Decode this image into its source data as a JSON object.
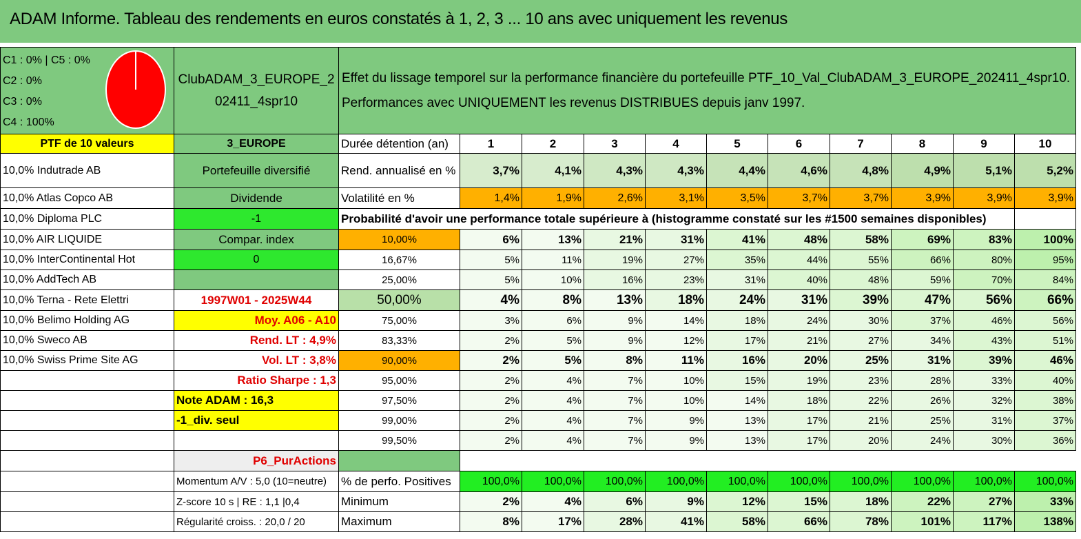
{
  "title": "ADAM Informe. Tableau des rendements en euros constatés à 1, 2, 3 ... 10 ans avec uniquement les revenus",
  "colors": {
    "title_bg": "#7fc97f",
    "yellow": "#ffff00",
    "orange": "#ffb000",
    "bright_green": "#2ee82e",
    "red_text": "#e00000",
    "pie": "#ff0000"
  },
  "pie_panel": {
    "lines": [
      "C1 : 0% | C5 : 0%",
      "C2 : 0%",
      "C3 : 0%",
      "C4 : 100%"
    ],
    "pie_share_C4": 100
  },
  "portfolio_name": "ClubADAM_3_EUROPE_202411_4spr10",
  "effect_text": {
    "line1": "Effet du lissage temporel sur la performance financière du portefeuille PTF_10_Val_ClubADAM_3_EUROPE_202411_4spr10.",
    "line2": "Performances avec UNIQUEMENT les revenus DISTRIBUES depuis janv 1997."
  },
  "header": {
    "ptf_label": "PTF de 10 valeurs",
    "zone": "3_EUROPE",
    "duration_label": "Durée détention (an)",
    "years": [
      "1",
      "2",
      "3",
      "4",
      "5",
      "6",
      "7",
      "8",
      "9",
      "10"
    ]
  },
  "holdings": [
    "10,0% Indutrade AB",
    "10,0% Atlas Copco AB",
    "10,0% Diploma PLC",
    "10,0% AIR LIQUIDE",
    "10,0% InterContinental Hot",
    "10,0% AddTech AB",
    "10,0% Terna - Rete Elettri",
    "10,0% Belimo Holding AG",
    "10,0% Sweco AB",
    "10,0% Swiss Prime Site AG"
  ],
  "info": {
    "diversified": "Portefeuille diversifié",
    "dividend": "Dividende",
    "dividend_value": "-1",
    "compar_index": "Compar. index",
    "compar_value": "0",
    "period": "1997W01 - 2025W44",
    "moy": "Moy. A06 - A10",
    "rend_lt": "Rend. LT : 4,9%",
    "vol_lt": "Vol. LT : 3,8%",
    "sharpe": "Ratio Sharpe : 1,3",
    "note": "Note ADAM : 16,3",
    "div_seul": "-1_div. seul",
    "p6": "P6_PurActions",
    "momentum": "Momentum A/V : 5,0 (10=neutre)",
    "zscore": "Z-score 10 s | RE : 1,1 |0,4",
    "regularite": "Régularité croiss. : 20,0 / 20"
  },
  "rend_row": {
    "label": "Rend. annualisé en %",
    "values": [
      "3,7%",
      "4,1%",
      "4,3%",
      "4,3%",
      "4,4%",
      "4,6%",
      "4,8%",
      "4,9%",
      "5,1%",
      "5,2%"
    ]
  },
  "vol_row": {
    "label": "Volatilité en %",
    "values": [
      "1,4%",
      "1,9%",
      "2,6%",
      "3,1%",
      "3,5%",
      "3,7%",
      "3,7%",
      "3,9%",
      "3,9%",
      "3,9%"
    ]
  },
  "proba_title": "Probabilité d'avoir une performance totale supérieure à (histogramme constaté sur les #1500 semaines disponibles)",
  "proba_rows": [
    {
      "p": "10,00%",
      "values": [
        "6%",
        "13%",
        "21%",
        "31%",
        "41%",
        "48%",
        "58%",
        "69%",
        "83%",
        "100%"
      ]
    },
    {
      "p": "16,67%",
      "values": [
        "5%",
        "11%",
        "19%",
        "27%",
        "35%",
        "44%",
        "55%",
        "66%",
        "80%",
        "95%"
      ]
    },
    {
      "p": "25,00%",
      "values": [
        "5%",
        "10%",
        "16%",
        "23%",
        "31%",
        "40%",
        "48%",
        "59%",
        "70%",
        "84%"
      ]
    },
    {
      "p": "50,00%",
      "values": [
        "4%",
        "8%",
        "13%",
        "18%",
        "24%",
        "31%",
        "39%",
        "47%",
        "56%",
        "66%"
      ]
    },
    {
      "p": "75,00%",
      "values": [
        "3%",
        "6%",
        "9%",
        "14%",
        "18%",
        "24%",
        "30%",
        "37%",
        "46%",
        "56%"
      ]
    },
    {
      "p": "83,33%",
      "values": [
        "2%",
        "5%",
        "9%",
        "12%",
        "17%",
        "21%",
        "27%",
        "34%",
        "43%",
        "51%"
      ]
    },
    {
      "p": "90,00%",
      "values": [
        "2%",
        "5%",
        "8%",
        "11%",
        "16%",
        "20%",
        "25%",
        "31%",
        "39%",
        "46%"
      ]
    },
    {
      "p": "95,00%",
      "values": [
        "2%",
        "4%",
        "7%",
        "10%",
        "15%",
        "19%",
        "23%",
        "28%",
        "33%",
        "40%"
      ]
    },
    {
      "p": "97,50%",
      "values": [
        "2%",
        "4%",
        "7%",
        "10%",
        "14%",
        "18%",
        "22%",
        "26%",
        "32%",
        "38%"
      ]
    },
    {
      "p": "99,00%",
      "values": [
        "2%",
        "4%",
        "7%",
        "9%",
        "13%",
        "17%",
        "21%",
        "25%",
        "31%",
        "37%"
      ]
    },
    {
      "p": "99,50%",
      "values": [
        "2%",
        "4%",
        "7%",
        "9%",
        "13%",
        "17%",
        "20%",
        "24%",
        "30%",
        "36%"
      ]
    }
  ],
  "positives_row": {
    "label": "% de perfo. Positives",
    "values": [
      "100,0%",
      "100,0%",
      "100,0%",
      "100,0%",
      "100,0%",
      "100,0%",
      "100,0%",
      "100,0%",
      "100,0%",
      "100,0%"
    ]
  },
  "min_row": {
    "label": "Minimum",
    "values": [
      "2%",
      "4%",
      "6%",
      "9%",
      "12%",
      "15%",
      "18%",
      "22%",
      "27%",
      "33%"
    ]
  },
  "max_row": {
    "label": "Maximum",
    "values": [
      "8%",
      "17%",
      "28%",
      "41%",
      "58%",
      "66%",
      "78%",
      "101%",
      "117%",
      "138%"
    ]
  }
}
